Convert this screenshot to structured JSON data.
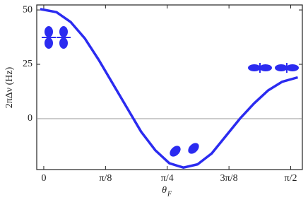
{
  "chart_data": {
    "type": "line",
    "ylabel": "2πΔν (Hz)",
    "xlabel": "θ",
    "xlabel_sub": "F",
    "x": [
      -0.0224,
      0.0808,
      0.1705,
      0.2603,
      0.3501,
      0.4398,
      0.5296,
      0.6193,
      0.7091,
      0.7989,
      0.8886,
      0.9784,
      1.0681,
      1.1579,
      1.2477,
      1.3374,
      1.4272,
      1.5169,
      1.6157
    ],
    "series": [
      {
        "color": "#2b2bf0",
        "values": [
          50.4,
          49,
          44.5,
          37,
          27,
          16,
          5,
          -6,
          -14.5,
          -20.5,
          -22.5,
          -21,
          -16,
          -8,
          0,
          7,
          13,
          17,
          19
        ]
      }
    ],
    "xlim": [
      -0.0447,
      1.6448
    ],
    "ylim": [
      -23.4,
      52.3
    ],
    "xticks": [
      0,
      {
        "value": 0.3927,
        "label": "π/8"
      },
      {
        "value": 0.7854,
        "label": "π/4"
      },
      {
        "value": 1.1781,
        "label": "3π/8"
      },
      {
        "value": 1.5708,
        "label": "π/2"
      }
    ],
    "yticks": [
      0,
      25,
      50
    ],
    "hline": 0
  }
}
